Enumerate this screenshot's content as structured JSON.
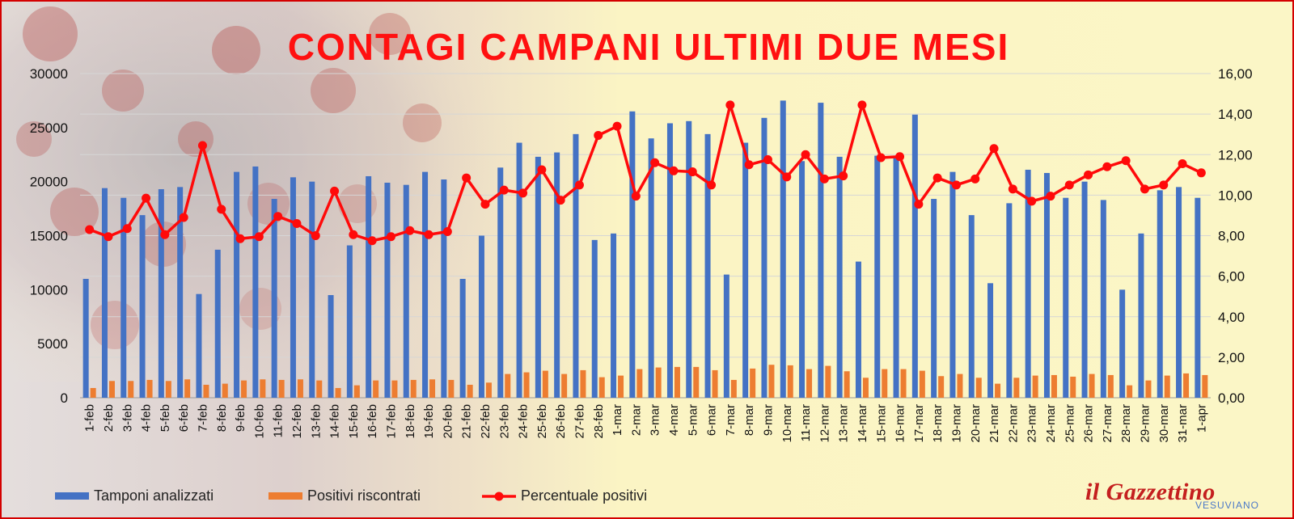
{
  "title": "CONTAGI CAMPANI ULTIMI DUE MESI",
  "logo": {
    "main": "il Gazzettino",
    "sub": "VESUVIANO"
  },
  "colors": {
    "tamponi": "#4472c4",
    "positivi": "#ed7d31",
    "percentuale": "#ff0a0a",
    "title": "#ff1010",
    "border": "#d40000"
  },
  "chart_data": {
    "type": "bar",
    "title": "CONTAGI CAMPANI ULTIMI DUE MESI",
    "legend_position": "bottom",
    "grid": true,
    "categories": [
      "1-feb",
      "2-feb",
      "3-feb",
      "4-feb",
      "5-feb",
      "6-feb",
      "7-feb",
      "8-feb",
      "9-feb",
      "10-feb",
      "11-feb",
      "12-feb",
      "13-feb",
      "14-feb",
      "15-feb",
      "16-feb",
      "17-feb",
      "18-feb",
      "19-feb",
      "20-feb",
      "21-feb",
      "22-feb",
      "23-feb",
      "24-feb",
      "25-feb",
      "26-feb",
      "27-feb",
      "28-feb",
      "1-mar",
      "2-mar",
      "3-mar",
      "4-mar",
      "5-mar",
      "6-mar",
      "7-mar",
      "8-mar",
      "9-mar",
      "10-mar",
      "11-mar",
      "12-mar",
      "13-mar",
      "14-mar",
      "15-mar",
      "16-mar",
      "17-mar",
      "18-mar",
      "19-mar",
      "20-mar",
      "21-mar",
      "22-mar",
      "23-mar",
      "24-mar",
      "25-mar",
      "26-mar",
      "27-mar",
      "28-mar",
      "29-mar",
      "30-mar",
      "31-mar",
      "1-apr"
    ],
    "y_left": {
      "range": [
        0,
        30000
      ],
      "ticks": [
        "0",
        "5000",
        "10000",
        "15000",
        "20000",
        "25000",
        "30000"
      ]
    },
    "y_right": {
      "range": [
        0,
        16
      ],
      "ticks": [
        "0,00",
        "2,00",
        "4,00",
        "6,00",
        "8,00",
        "10,00",
        "12,00",
        "14,00",
        "16,00"
      ]
    },
    "series": [
      {
        "name": "Tamponi analizzati",
        "type": "bar",
        "axis": "left",
        "values": [
          11000,
          19400,
          18500,
          16900,
          19300,
          19500,
          9600,
          13700,
          20900,
          21400,
          18400,
          20400,
          20000,
          9500,
          14100,
          20500,
          19900,
          19700,
          20900,
          20200,
          11000,
          15000,
          21300,
          23600,
          22300,
          22700,
          24400,
          14600,
          15200,
          26500,
          24000,
          25400,
          25600,
          24400,
          11400,
          23600,
          25900,
          27500,
          21900,
          27300,
          22300,
          12600,
          22400,
          22400,
          26200,
          18400,
          20900,
          16900,
          10600,
          18000,
          21100,
          20800,
          18500,
          20000,
          18300,
          10000,
          15200,
          19200,
          19500,
          18500
        ]
      },
      {
        "name": "Positivi riscontrati",
        "type": "bar",
        "axis": "left",
        "values": [
          900,
          1550,
          1550,
          1650,
          1550,
          1700,
          1200,
          1300,
          1600,
          1700,
          1650,
          1700,
          1600,
          900,
          1150,
          1600,
          1600,
          1650,
          1700,
          1650,
          1200,
          1400,
          2200,
          2350,
          2500,
          2200,
          2550,
          1900,
          2050,
          2650,
          2800,
          2850,
          2850,
          2550,
          1650,
          2700,
          3050,
          3000,
          2650,
          2950,
          2450,
          1850,
          2650,
          2650,
          2500,
          2000,
          2200,
          1850,
          1300,
          1850,
          2050,
          2100,
          1950,
          2200,
          2100,
          1150,
          1600,
          2050,
          2250,
          2100
        ]
      },
      {
        "name": "Percentuale positivi",
        "type": "line",
        "axis": "right",
        "values": [
          8.3,
          7.95,
          8.35,
          9.85,
          8.05,
          8.9,
          12.45,
          9.3,
          7.85,
          7.95,
          8.95,
          8.6,
          8.0,
          10.2,
          8.05,
          7.75,
          7.95,
          8.25,
          8.05,
          8.2,
          10.85,
          9.55,
          10.25,
          10.1,
          11.25,
          9.75,
          10.5,
          12.95,
          13.4,
          9.95,
          11.6,
          11.2,
          11.15,
          10.5,
          14.45,
          11.5,
          11.75,
          10.9,
          12.0,
          10.8,
          10.95,
          14.45,
          11.85,
          11.9,
          9.55,
          10.85,
          10.5,
          10.8,
          12.3,
          10.3,
          9.7,
          9.95,
          10.5,
          11.0,
          11.4,
          11.7,
          10.3,
          10.5,
          11.55,
          11.1
        ]
      }
    ]
  }
}
